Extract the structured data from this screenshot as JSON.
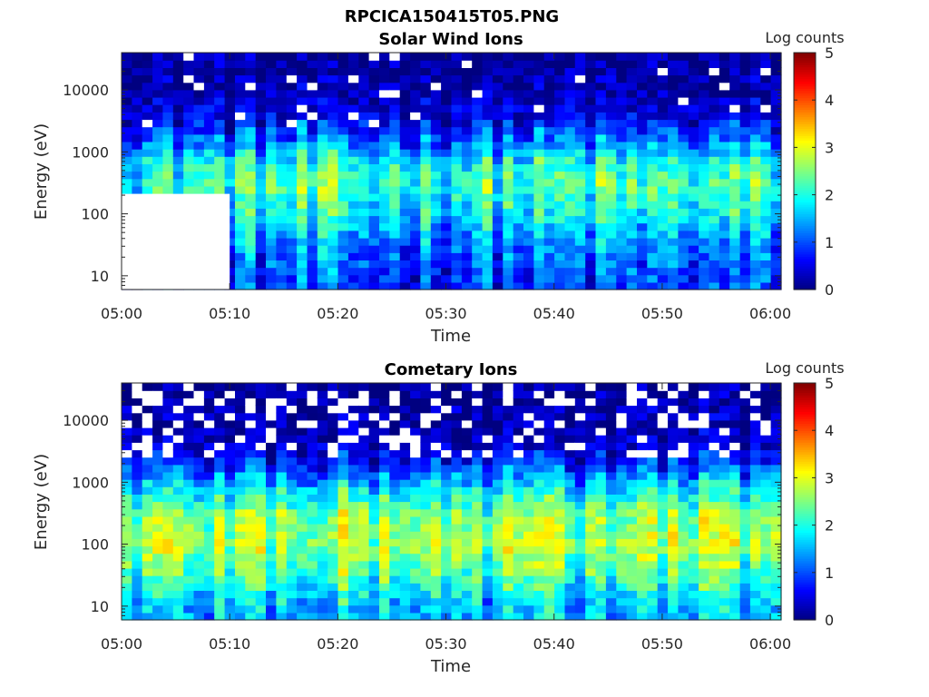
{
  "figure": {
    "title": "RPCICA150415T05.PNG"
  },
  "chart_data": [
    {
      "type": "heatmap",
      "title": "Solar Wind Ions",
      "xlabel": "Time",
      "ylabel": "Energy (eV)",
      "x_ticks": [
        "05:00",
        "05:10",
        "05:20",
        "05:30",
        "05:40",
        "05:50",
        "06:00"
      ],
      "x_range": [
        "05:00",
        "06:01"
      ],
      "y_scale": "log",
      "y_ticks": [
        "10",
        "100",
        "1000",
        "10000"
      ],
      "y_range": [
        6,
        40000
      ],
      "colorbar": {
        "label": "Log counts",
        "range": [
          0,
          5
        ],
        "ticks": [
          "0",
          "1",
          "2",
          "3",
          "4",
          "5"
        ],
        "colormap": "jet"
      },
      "no_data_region": {
        "x_range": [
          "05:00",
          "05:10"
        ],
        "y_range": [
          6,
          210
        ]
      },
      "profile": [
        {
          "energy_eV": 10,
          "log_counts": 0.9
        },
        {
          "energy_eV": 30,
          "log_counts": 1.2
        },
        {
          "energy_eV": 100,
          "log_counts": 1.8
        },
        {
          "energy_eV": 300,
          "log_counts": 2.2
        },
        {
          "energy_eV": 700,
          "log_counts": 1.9
        },
        {
          "energy_eV": 1500,
          "log_counts": 1.1
        },
        {
          "energy_eV": 4000,
          "log_counts": 0.5
        },
        {
          "energy_eV": 10000,
          "log_counts": 0.2
        },
        {
          "energy_eV": 40000,
          "log_counts": 0.1
        }
      ]
    },
    {
      "type": "heatmap",
      "title": "Cometary Ions",
      "xlabel": "Time",
      "ylabel": "Energy (eV)",
      "x_ticks": [
        "05:00",
        "05:10",
        "05:20",
        "05:30",
        "05:40",
        "05:50",
        "06:00"
      ],
      "x_range": [
        "05:00",
        "06:01"
      ],
      "y_scale": "log",
      "y_ticks": [
        "10",
        "100",
        "1000",
        "10000"
      ],
      "y_range": [
        6,
        40000
      ],
      "colorbar": {
        "label": "Log counts",
        "range": [
          0,
          5
        ],
        "ticks": [
          "0",
          "1",
          "2",
          "3",
          "4",
          "5"
        ],
        "colormap": "jet"
      },
      "profile": [
        {
          "energy_eV": 10,
          "log_counts": 1.5
        },
        {
          "energy_eV": 30,
          "log_counts": 2.2
        },
        {
          "energy_eV": 100,
          "log_counts": 2.7
        },
        {
          "energy_eV": 300,
          "log_counts": 2.5
        },
        {
          "energy_eV": 800,
          "log_counts": 1.7
        },
        {
          "energy_eV": 2000,
          "log_counts": 0.8
        },
        {
          "energy_eV": 5000,
          "log_counts": 0.3
        },
        {
          "energy_eV": 15000,
          "log_counts": 0.2
        },
        {
          "energy_eV": 40000,
          "log_counts": 0.1
        }
      ]
    }
  ]
}
